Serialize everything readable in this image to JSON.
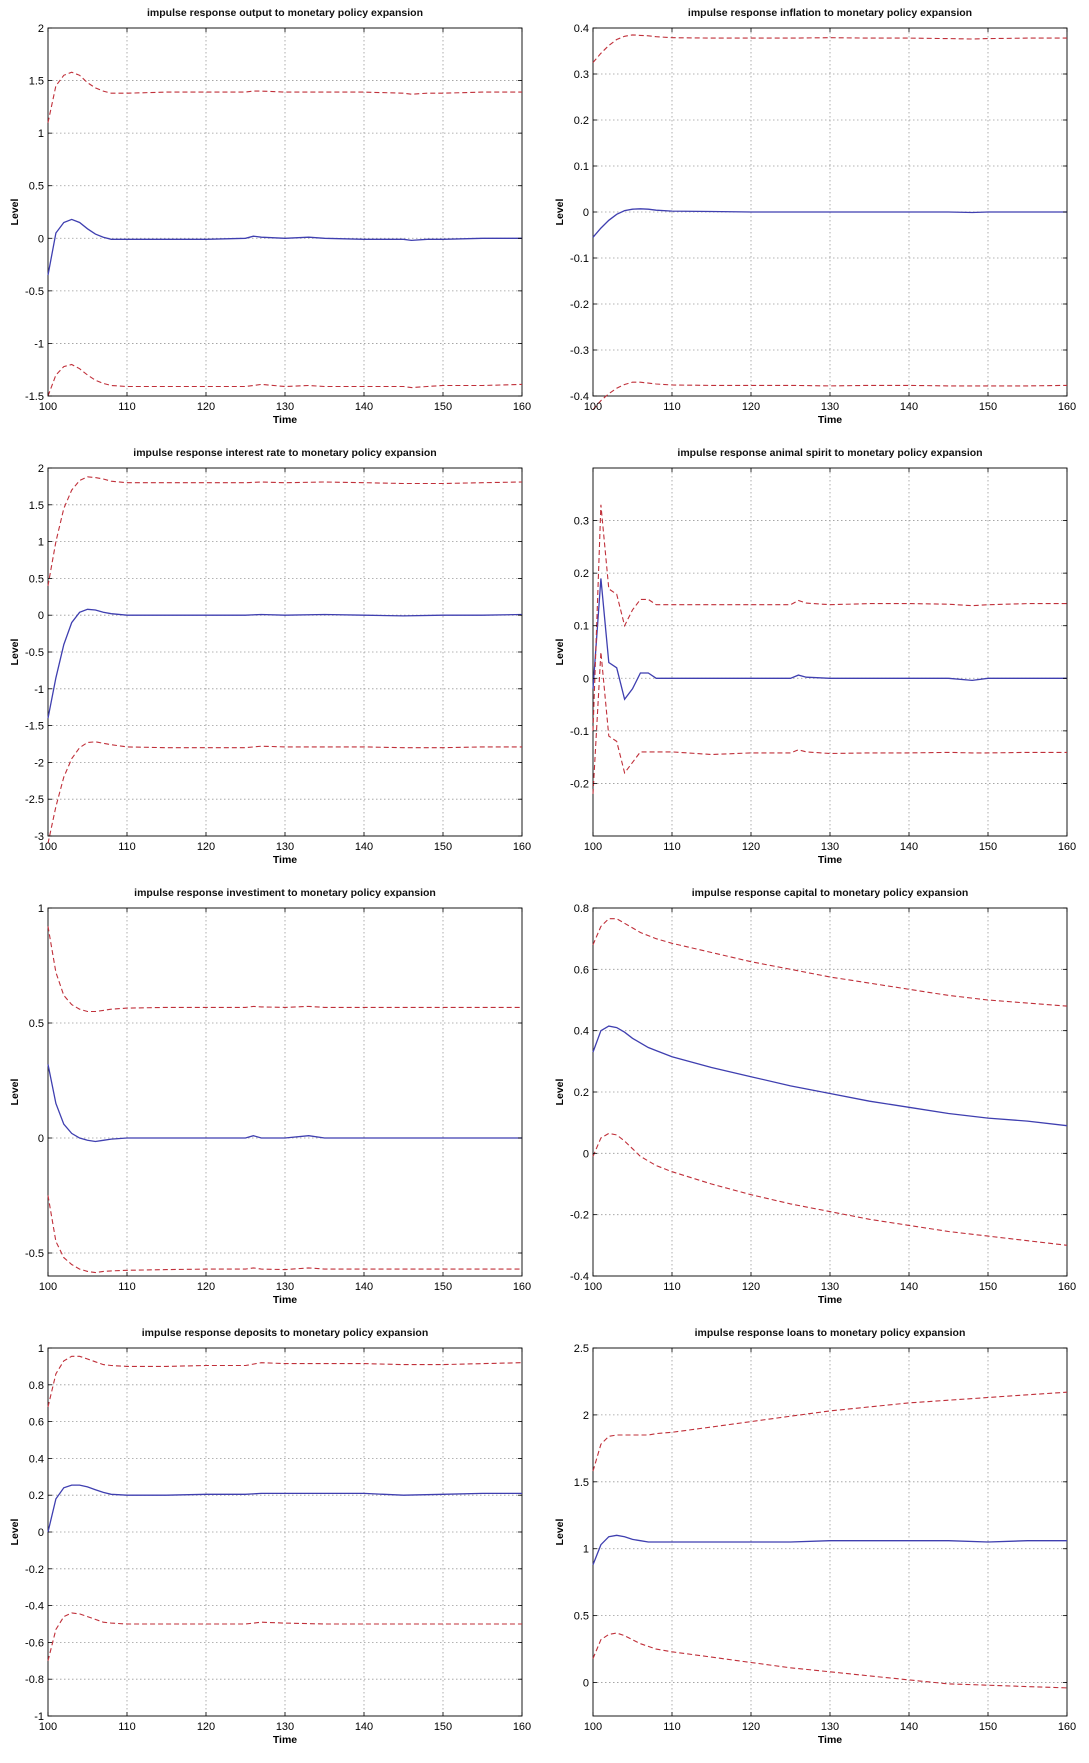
{
  "chart_data": [
    {
      "type": "line",
      "title": "impulse response output to monetary policy expansion",
      "xlabel": "Time",
      "ylabel": "Level",
      "xlim": [
        100,
        160
      ],
      "ylim": [
        -1.5,
        2
      ],
      "xticks": [
        100,
        110,
        120,
        130,
        140,
        150,
        160
      ],
      "yticks": [
        -1.5,
        -1,
        -0.5,
        0,
        0.5,
        1,
        1.5,
        2
      ],
      "grid": true,
      "x": [
        100,
        101,
        102,
        103,
        104,
        105,
        106,
        107,
        108,
        110,
        115,
        120,
        125,
        126,
        127,
        130,
        133,
        135,
        140,
        145,
        146,
        148,
        150,
        155,
        160
      ],
      "series": [
        {
          "role": "irf",
          "color": "#3f3fb0",
          "values": [
            -0.35,
            0.05,
            0.15,
            0.18,
            0.15,
            0.09,
            0.04,
            0.01,
            -0.01,
            -0.01,
            -0.01,
            -0.01,
            0,
            0.02,
            0.01,
            0,
            0.01,
            0,
            -0.01,
            -0.01,
            -0.02,
            -0.01,
            -0.01,
            0,
            0
          ]
        },
        {
          "role": "upper",
          "color": "#c0303a",
          "values": [
            1.1,
            1.45,
            1.55,
            1.58,
            1.55,
            1.48,
            1.43,
            1.4,
            1.38,
            1.38,
            1.39,
            1.39,
            1.39,
            1.4,
            1.4,
            1.39,
            1.39,
            1.39,
            1.39,
            1.38,
            1.37,
            1.38,
            1.38,
            1.39,
            1.39
          ]
        },
        {
          "role": "lower",
          "color": "#c0303a",
          "values": [
            -1.5,
            -1.3,
            -1.22,
            -1.2,
            -1.24,
            -1.3,
            -1.35,
            -1.38,
            -1.4,
            -1.41,
            -1.41,
            -1.41,
            -1.41,
            -1.4,
            -1.39,
            -1.41,
            -1.4,
            -1.41,
            -1.41,
            -1.41,
            -1.42,
            -1.41,
            -1.4,
            -1.4,
            -1.39
          ]
        }
      ]
    },
    {
      "type": "line",
      "title": "impulse response inflation to monetary policy expansion",
      "xlabel": "Time",
      "ylabel": "Level",
      "xlim": [
        100,
        160
      ],
      "ylim": [
        -0.4,
        0.4
      ],
      "xticks": [
        100,
        110,
        120,
        130,
        140,
        150,
        160
      ],
      "yticks": [
        -0.4,
        -0.3,
        -0.2,
        -0.1,
        0,
        0.1,
        0.2,
        0.3,
        0.4
      ],
      "grid": true,
      "x": [
        100,
        101,
        102,
        103,
        104,
        105,
        106,
        107,
        108,
        110,
        115,
        120,
        125,
        130,
        135,
        140,
        145,
        148,
        150,
        155,
        160
      ],
      "series": [
        {
          "role": "irf",
          "color": "#3f3fb0",
          "values": [
            -0.055,
            -0.035,
            -0.018,
            -0.005,
            0.003,
            0.006,
            0.007,
            0.006,
            0.004,
            0.002,
            0.001,
            0,
            0,
            0,
            0,
            0,
            0,
            -0.001,
            0,
            0,
            0
          ]
        },
        {
          "role": "upper",
          "color": "#c0303a",
          "values": [
            0.325,
            0.345,
            0.362,
            0.375,
            0.382,
            0.385,
            0.384,
            0.383,
            0.381,
            0.379,
            0.378,
            0.378,
            0.378,
            0.379,
            0.378,
            0.378,
            0.377,
            0.376,
            0.377,
            0.378,
            0.378
          ]
        },
        {
          "role": "lower",
          "color": "#c0303a",
          "values": [
            -0.43,
            -0.41,
            -0.395,
            -0.383,
            -0.375,
            -0.37,
            -0.37,
            -0.372,
            -0.374,
            -0.376,
            -0.377,
            -0.377,
            -0.377,
            -0.378,
            -0.377,
            -0.377,
            -0.378,
            -0.378,
            -0.378,
            -0.378,
            -0.377
          ]
        }
      ]
    },
    {
      "type": "line",
      "title": "impulse response interest rate to monetary policy expansion",
      "xlabel": "Time",
      "ylabel": "Level",
      "xlim": [
        100,
        160
      ],
      "ylim": [
        -3,
        2
      ],
      "xticks": [
        100,
        110,
        120,
        130,
        140,
        150,
        160
      ],
      "yticks": [
        -3,
        -2.5,
        -2,
        -1.5,
        -1,
        -0.5,
        0,
        0.5,
        1,
        1.5,
        2
      ],
      "grid": true,
      "x": [
        100,
        101,
        102,
        103,
        104,
        105,
        106,
        107,
        108,
        110,
        115,
        120,
        125,
        127,
        130,
        135,
        140,
        145,
        150,
        155,
        160
      ],
      "series": [
        {
          "role": "irf",
          "color": "#3f3fb0",
          "values": [
            -1.4,
            -0.85,
            -0.4,
            -0.1,
            0.04,
            0.08,
            0.07,
            0.04,
            0.02,
            0,
            0,
            0,
            0,
            0.01,
            0,
            0.01,
            0,
            -0.01,
            0,
            0,
            0.01
          ]
        },
        {
          "role": "upper",
          "color": "#c0303a",
          "values": [
            0.4,
            1.0,
            1.45,
            1.7,
            1.83,
            1.88,
            1.87,
            1.85,
            1.82,
            1.8,
            1.8,
            1.8,
            1.8,
            1.81,
            1.8,
            1.81,
            1.8,
            1.79,
            1.79,
            1.8,
            1.81
          ]
        },
        {
          "role": "lower",
          "color": "#c0303a",
          "values": [
            -3.1,
            -2.6,
            -2.2,
            -1.95,
            -1.8,
            -1.73,
            -1.72,
            -1.74,
            -1.76,
            -1.79,
            -1.8,
            -1.8,
            -1.8,
            -1.78,
            -1.79,
            -1.79,
            -1.79,
            -1.8,
            -1.8,
            -1.79,
            -1.79
          ]
        }
      ]
    },
    {
      "type": "line",
      "title": "impulse response animal spirit to monetary policy expansion",
      "xlabel": "Time",
      "ylabel": "Level",
      "xlim": [
        100,
        160
      ],
      "ylim": [
        -0.3,
        0.4
      ],
      "xticks": [
        100,
        110,
        120,
        130,
        140,
        150,
        160
      ],
      "yticks": [
        -0.2,
        -0.1,
        0,
        0.1,
        0.2,
        0.3
      ],
      "grid": true,
      "x": [
        100,
        101,
        102,
        103,
        104,
        105,
        106,
        107,
        108,
        110,
        115,
        120,
        125,
        126,
        127,
        130,
        135,
        140,
        145,
        148,
        150,
        155,
        160
      ],
      "series": [
        {
          "role": "irf",
          "color": "#3f3fb0",
          "values": [
            -0.02,
            0.19,
            0.03,
            0.02,
            -0.04,
            -0.02,
            0.01,
            0.01,
            0,
            0,
            0,
            0,
            0,
            0.006,
            0.002,
            0,
            0,
            0,
            0,
            -0.004,
            0,
            0,
            0
          ]
        },
        {
          "role": "upper",
          "color": "#c0303a",
          "values": [
            -0.1,
            0.33,
            0.17,
            0.16,
            0.1,
            0.13,
            0.15,
            0.15,
            0.14,
            0.14,
            0.14,
            0.14,
            0.14,
            0.148,
            0.143,
            0.14,
            0.142,
            0.142,
            0.141,
            0.138,
            0.14,
            0.142,
            0.142
          ]
        },
        {
          "role": "lower",
          "color": "#c0303a",
          "values": [
            -0.22,
            0.05,
            -0.11,
            -0.12,
            -0.18,
            -0.16,
            -0.14,
            -0.14,
            -0.14,
            -0.14,
            -0.145,
            -0.142,
            -0.142,
            -0.136,
            -0.14,
            -0.143,
            -0.142,
            -0.142,
            -0.141,
            -0.142,
            -0.142,
            -0.141,
            -0.141
          ]
        }
      ]
    },
    {
      "type": "line",
      "title": "impulse response investiment to monetary policy expansion",
      "xlabel": "Time",
      "ylabel": "Level",
      "xlim": [
        100,
        160
      ],
      "ylim": [
        -0.6,
        1
      ],
      "xticks": [
        100,
        110,
        120,
        130,
        140,
        150,
        160
      ],
      "yticks": [
        -0.5,
        0,
        0.5,
        1
      ],
      "grid": true,
      "x": [
        100,
        101,
        102,
        103,
        104,
        105,
        106,
        107,
        108,
        110,
        115,
        120,
        125,
        126,
        127,
        130,
        133,
        135,
        140,
        145,
        150,
        155,
        160
      ],
      "series": [
        {
          "role": "irf",
          "color": "#3f3fb0",
          "values": [
            0.32,
            0.15,
            0.06,
            0.02,
            0,
            -0.01,
            -0.015,
            -0.01,
            -0.005,
            0,
            0,
            0,
            0,
            0.01,
            0,
            0,
            0.01,
            0,
            0,
            0,
            0,
            0,
            0
          ]
        },
        {
          "role": "upper",
          "color": "#c0303a",
          "values": [
            0.92,
            0.72,
            0.62,
            0.58,
            0.56,
            0.55,
            0.55,
            0.555,
            0.56,
            0.565,
            0.568,
            0.568,
            0.568,
            0.572,
            0.57,
            0.568,
            0.572,
            0.568,
            0.568,
            0.568,
            0.568,
            0.568,
            0.568
          ]
        },
        {
          "role": "lower",
          "color": "#c0303a",
          "values": [
            -0.25,
            -0.45,
            -0.52,
            -0.55,
            -0.57,
            -0.58,
            -0.585,
            -0.58,
            -0.578,
            -0.575,
            -0.572,
            -0.57,
            -0.57,
            -0.565,
            -0.57,
            -0.572,
            -0.565,
            -0.57,
            -0.57,
            -0.57,
            -0.57,
            -0.57,
            -0.57
          ]
        }
      ]
    },
    {
      "type": "line",
      "title": "impulse response capital to monetary policy expansion",
      "xlabel": "Time",
      "ylabel": "Level",
      "xlim": [
        100,
        160
      ],
      "ylim": [
        -0.4,
        0.8
      ],
      "xticks": [
        100,
        110,
        120,
        130,
        140,
        150,
        160
      ],
      "yticks": [
        -0.4,
        -0.2,
        0,
        0.2,
        0.4,
        0.6,
        0.8
      ],
      "grid": true,
      "x": [
        100,
        101,
        102,
        103,
        104,
        105,
        106,
        107,
        108,
        110,
        115,
        120,
        125,
        130,
        135,
        140,
        145,
        150,
        155,
        160
      ],
      "series": [
        {
          "role": "irf",
          "color": "#3f3fb0",
          "values": [
            0.33,
            0.4,
            0.415,
            0.41,
            0.395,
            0.375,
            0.36,
            0.345,
            0.335,
            0.315,
            0.28,
            0.25,
            0.22,
            0.195,
            0.17,
            0.15,
            0.13,
            0.115,
            0.105,
            0.09
          ]
        },
        {
          "role": "upper",
          "color": "#c0303a",
          "values": [
            0.68,
            0.74,
            0.765,
            0.765,
            0.75,
            0.735,
            0.72,
            0.71,
            0.7,
            0.685,
            0.655,
            0.625,
            0.6,
            0.575,
            0.555,
            0.535,
            0.515,
            0.5,
            0.49,
            0.48
          ]
        },
        {
          "role": "lower",
          "color": "#c0303a",
          "values": [
            -0.01,
            0.05,
            0.065,
            0.06,
            0.04,
            0.015,
            -0.01,
            -0.025,
            -0.04,
            -0.06,
            -0.1,
            -0.135,
            -0.165,
            -0.19,
            -0.215,
            -0.235,
            -0.255,
            -0.27,
            -0.285,
            -0.3
          ]
        }
      ]
    },
    {
      "type": "line",
      "title": "impulse response deposits to monetary policy expansion",
      "xlabel": "Time",
      "ylabel": "Level",
      "xlim": [
        100,
        160
      ],
      "ylim": [
        -1,
        1
      ],
      "xticks": [
        100,
        110,
        120,
        130,
        140,
        150,
        160
      ],
      "yticks": [
        -1,
        -0.8,
        -0.6,
        -0.4,
        -0.2,
        0,
        0.2,
        0.4,
        0.6,
        0.8,
        1
      ],
      "grid": true,
      "x": [
        100,
        101,
        102,
        103,
        104,
        105,
        106,
        107,
        108,
        110,
        115,
        120,
        125,
        127,
        130,
        135,
        140,
        145,
        150,
        155,
        160
      ],
      "series": [
        {
          "role": "irf",
          "color": "#3f3fb0",
          "values": [
            0.0,
            0.18,
            0.24,
            0.255,
            0.255,
            0.245,
            0.23,
            0.215,
            0.205,
            0.2,
            0.2,
            0.205,
            0.205,
            0.21,
            0.21,
            0.21,
            0.21,
            0.2,
            0.205,
            0.21,
            0.21
          ]
        },
        {
          "role": "upper",
          "color": "#c0303a",
          "values": [
            0.68,
            0.86,
            0.93,
            0.955,
            0.955,
            0.94,
            0.925,
            0.91,
            0.905,
            0.9,
            0.9,
            0.905,
            0.905,
            0.92,
            0.915,
            0.915,
            0.915,
            0.91,
            0.91,
            0.915,
            0.92
          ]
        },
        {
          "role": "lower",
          "color": "#c0303a",
          "values": [
            -0.7,
            -0.53,
            -0.46,
            -0.44,
            -0.445,
            -0.46,
            -0.475,
            -0.49,
            -0.495,
            -0.5,
            -0.5,
            -0.5,
            -0.5,
            -0.49,
            -0.495,
            -0.5,
            -0.5,
            -0.5,
            -0.5,
            -0.5,
            -0.5
          ]
        }
      ]
    },
    {
      "type": "line",
      "title": "impulse response loans to monetary policy expansion",
      "xlabel": "Time",
      "ylabel": "Level",
      "xlim": [
        100,
        160
      ],
      "ylim": [
        -0.25,
        2.5
      ],
      "xticks": [
        100,
        110,
        120,
        130,
        140,
        150,
        160
      ],
      "yticks": [
        0,
        0.5,
        1,
        1.5,
        2,
        2.5
      ],
      "grid": true,
      "x": [
        100,
        101,
        102,
        103,
        104,
        105,
        106,
        107,
        108,
        110,
        115,
        120,
        125,
        130,
        135,
        140,
        145,
        150,
        155,
        160
      ],
      "series": [
        {
          "role": "irf",
          "color": "#3f3fb0",
          "values": [
            0.88,
            1.03,
            1.09,
            1.1,
            1.09,
            1.07,
            1.06,
            1.05,
            1.05,
            1.05,
            1.05,
            1.05,
            1.05,
            1.06,
            1.06,
            1.06,
            1.06,
            1.05,
            1.06,
            1.06
          ]
        },
        {
          "role": "upper",
          "color": "#c0303a",
          "values": [
            1.58,
            1.78,
            1.84,
            1.85,
            1.85,
            1.85,
            1.85,
            1.85,
            1.86,
            1.87,
            1.91,
            1.95,
            1.99,
            2.03,
            2.06,
            2.09,
            2.11,
            2.13,
            2.15,
            2.17
          ]
        },
        {
          "role": "lower",
          "color": "#c0303a",
          "values": [
            0.18,
            0.32,
            0.36,
            0.37,
            0.35,
            0.32,
            0.29,
            0.27,
            0.25,
            0.23,
            0.19,
            0.15,
            0.11,
            0.08,
            0.05,
            0.02,
            -0.01,
            -0.02,
            -0.03,
            -0.04
          ]
        }
      ]
    }
  ]
}
